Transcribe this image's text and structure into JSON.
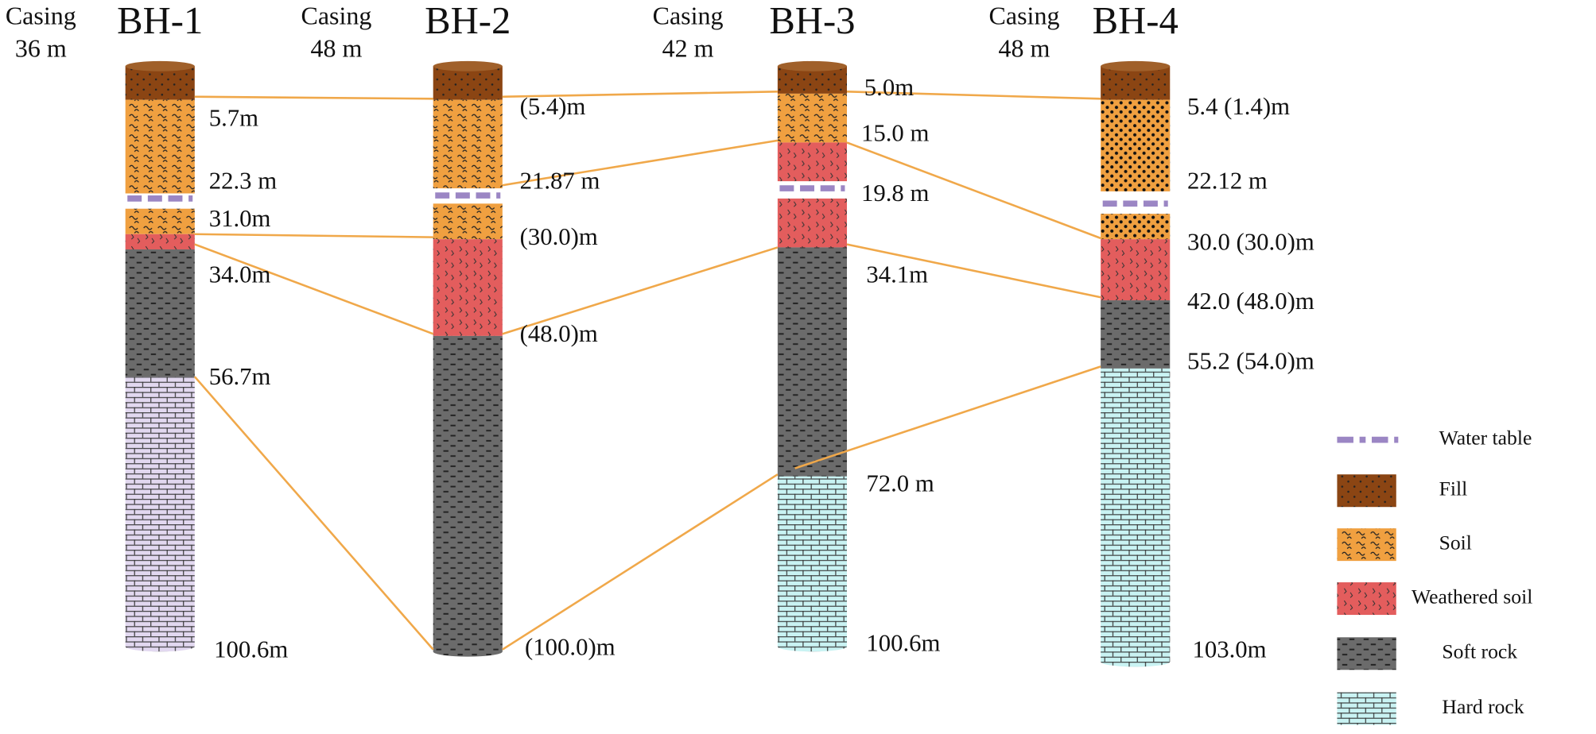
{
  "boreholes": [
    {
      "casing": "Casing",
      "casing_depth": "36 m",
      "name": "BH-1",
      "depth_labels": [
        "5.7m",
        "22.3 m",
        "31.0m",
        "34.0m",
        "56.7m",
        "100.6m"
      ]
    },
    {
      "casing": "Casing",
      "casing_depth": "48 m",
      "name": "BH-2",
      "depth_labels": [
        "(5.4)m",
        "21.87 m",
        "(30.0)m",
        "(48.0)m",
        "(100.0)m"
      ]
    },
    {
      "casing": "Casing",
      "casing_depth": "42 m",
      "name": "BH-3",
      "depth_labels": [
        "5.0m",
        "15.0 m",
        "19.8 m",
        "34.1m",
        "72.0 m",
        "100.6m"
      ]
    },
    {
      "casing": "Casing",
      "casing_depth": "48 m",
      "name": "BH-4",
      "depth_labels": [
        "5.4 (1.4)m",
        "22.12 m",
        "30.0 (30.0)m",
        "42.0 (48.0)m",
        "55.2 (54.0)m",
        "103.0m"
      ]
    }
  ],
  "legend": [
    {
      "label": "Water table"
    },
    {
      "label": "Fill"
    },
    {
      "label": "Soil"
    },
    {
      "label": "Weathered soil"
    },
    {
      "label": "Soft rock"
    },
    {
      "label": "Hard rock"
    }
  ]
}
